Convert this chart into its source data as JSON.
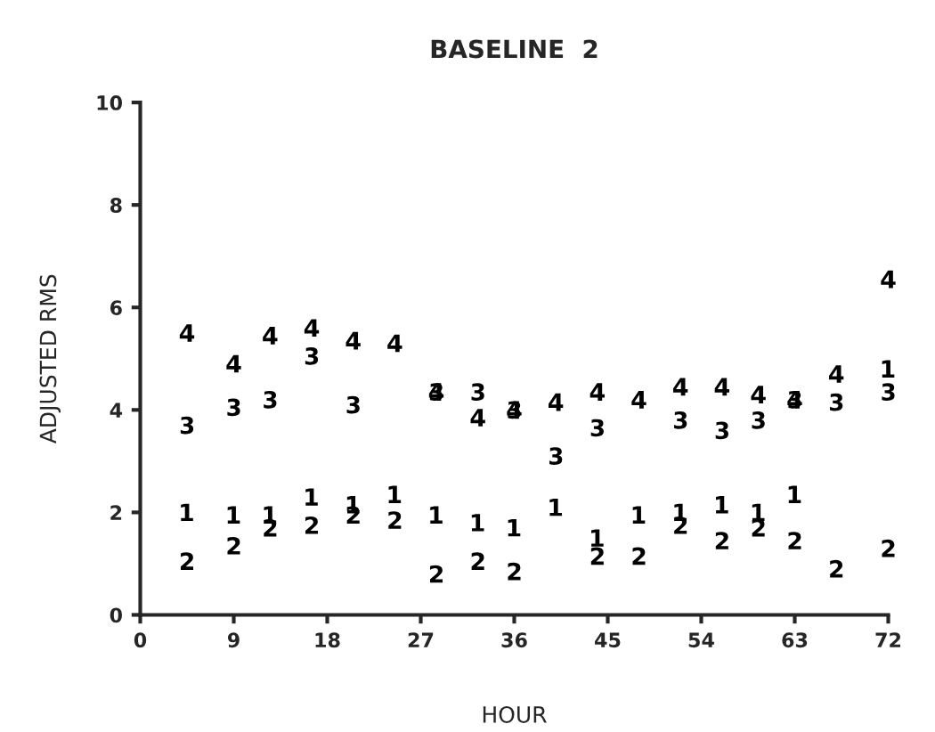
{
  "chart_data": {
    "type": "scatter",
    "title": "BASELINE  2",
    "xlabel": "HOUR",
    "ylabel": "ADJUSTED RMS",
    "x": [
      4.5,
      9,
      12.5,
      16.5,
      20.5,
      24.5,
      28.5,
      32.5,
      36,
      40,
      44,
      48,
      52,
      56,
      59.5,
      63,
      67,
      72
    ],
    "series": [
      {
        "color": "#000000",
        "values": [
          2.0,
          1.95,
          1.95,
          2.3,
          2.15,
          2.35,
          1.95,
          1.8,
          1.7,
          2.1,
          1.5,
          1.95,
          2.0,
          2.15,
          2.0,
          2.35,
          null,
          4.8
        ]
      },
      {
        "color": "#000000",
        "values": [
          1.05,
          1.35,
          1.7,
          1.75,
          1.95,
          1.85,
          0.8,
          1.05,
          0.85,
          null,
          1.15,
          1.15,
          1.75,
          1.45,
          1.7,
          1.45,
          0.9,
          1.3
        ]
      },
      {
        "color": "#000000",
        "values": [
          3.7,
          4.05,
          4.2,
          5.05,
          4.1,
          null,
          4.35,
          4.35,
          4.0,
          3.1,
          3.65,
          null,
          3.8,
          3.6,
          3.8,
          4.2,
          4.15,
          4.35
        ]
      },
      {
        "color": "#000000",
        "values": [
          5.5,
          4.9,
          5.45,
          5.6,
          5.35,
          5.3,
          4.35,
          3.85,
          4.0,
          4.15,
          4.35,
          4.2,
          4.45,
          4.45,
          4.3,
          4.2,
          4.7,
          6.55
        ]
      }
    ],
    "xlim": [
      0,
      72
    ],
    "ylim": [
      0,
      10
    ],
    "xticks": [
      0,
      9,
      18,
      27,
      36,
      45,
      54,
      63,
      72
    ],
    "yticks": [
      0,
      2,
      4,
      6,
      8,
      10
    ],
    "grid": false,
    "legend": false
  }
}
